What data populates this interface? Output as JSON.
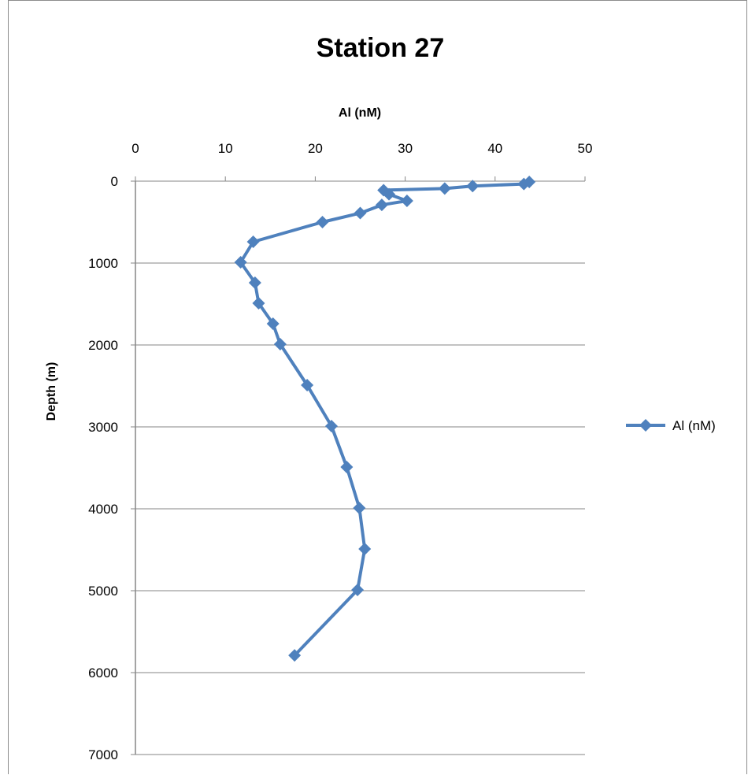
{
  "chart_data": {
    "type": "line",
    "title": "Station 27",
    "xlabel": "Al (nM)",
    "ylabel": "Depth (m)",
    "xlim": [
      0,
      50
    ],
    "ylim": [
      0,
      7000
    ],
    "y_reversed": true,
    "x_axis_position": "top",
    "x_ticks": [
      0,
      10,
      20,
      30,
      40,
      50
    ],
    "y_ticks": [
      0,
      1000,
      2000,
      3000,
      4000,
      5000,
      6000,
      7000
    ],
    "grid": "horizontal",
    "legend": "right",
    "color": "#4F81BD",
    "marker": "diamond",
    "series": [
      {
        "name": "Al (nM)",
        "points": [
          [
            43.8,
            10
          ],
          [
            43.2,
            35
          ],
          [
            37.5,
            60
          ],
          [
            34.4,
            90
          ],
          [
            27.6,
            110
          ],
          [
            28.2,
            160
          ],
          [
            30.2,
            240
          ],
          [
            27.4,
            290
          ],
          [
            25.0,
            390
          ],
          [
            20.8,
            500
          ],
          [
            13.1,
            740
          ],
          [
            11.7,
            990
          ],
          [
            13.3,
            1240
          ],
          [
            13.7,
            1490
          ],
          [
            15.3,
            1740
          ],
          [
            16.1,
            1990
          ],
          [
            19.1,
            2490
          ],
          [
            21.8,
            2990
          ],
          [
            23.5,
            3490
          ],
          [
            24.9,
            3990
          ],
          [
            25.5,
            4490
          ],
          [
            24.7,
            4990
          ],
          [
            17.7,
            5790
          ]
        ]
      }
    ]
  }
}
